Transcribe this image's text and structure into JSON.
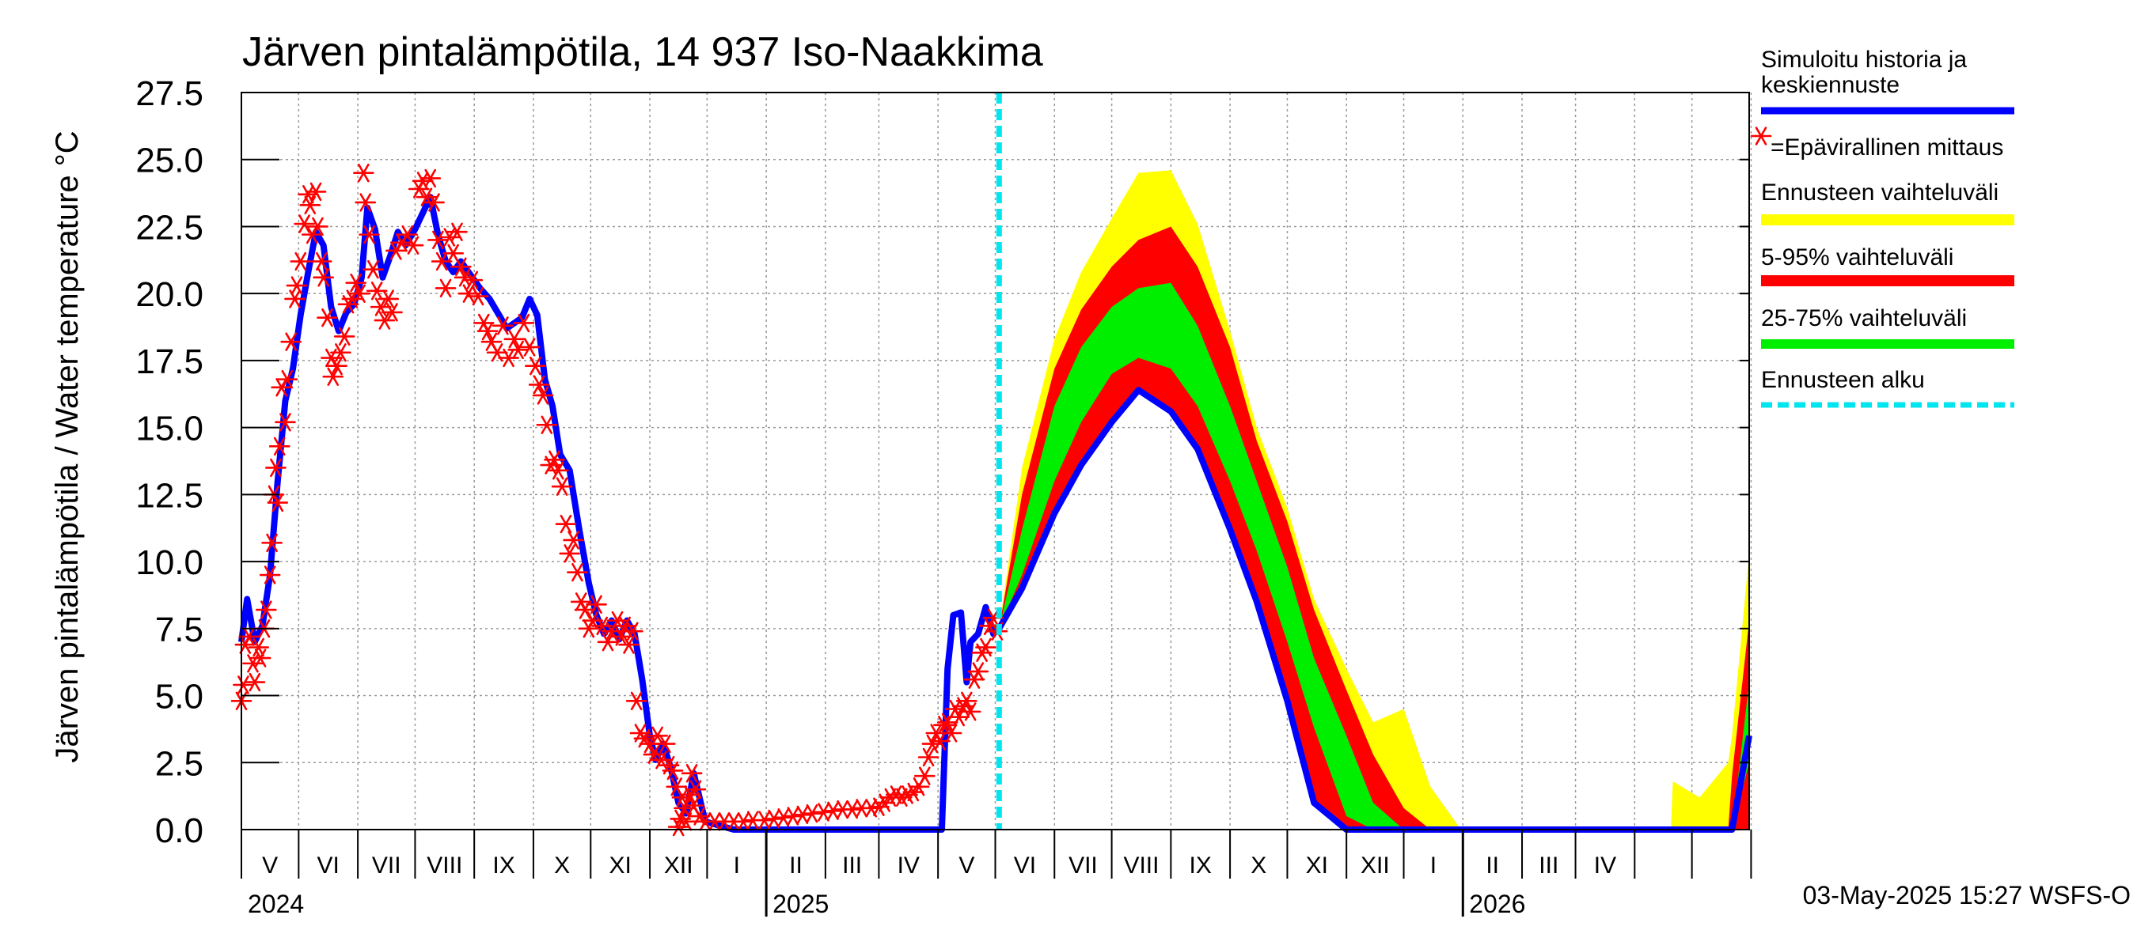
{
  "chart_data": {
    "type": "area",
    "title": "Järven pintalämpötila, 14 937 Iso-Naakkima",
    "ylabel": "Järven pintalämpötila / Water temperature °C",
    "ylim": [
      0,
      27.5
    ],
    "yticks": [
      "0.0",
      "2.5",
      "5.0",
      "7.5",
      "10.0",
      "12.5",
      "15.0",
      "17.5",
      "20.0",
      "22.5",
      "25.0",
      "27.5"
    ],
    "xlim": [
      "2024-04-01",
      "2026-05-31"
    ],
    "month_labels": [
      "V",
      "VI",
      "VII",
      "VIII",
      "IX",
      "X",
      "XI",
      "XII",
      "I",
      "II",
      "III",
      "IV",
      "V",
      "VI",
      "VII",
      "VIII",
      "IX",
      "X",
      "XI",
      "XII",
      "I",
      "II",
      "III",
      "IV"
    ],
    "year_labels": [
      "2024",
      "2025",
      "2026"
    ],
    "forecast_start": "2025-05-03",
    "timestamp": "03-May-2025 15:27 WSFS-O",
    "legend": [
      {
        "key": "history",
        "label": "Simuloitu historia ja keskiennuste",
        "color": "#0000ff"
      },
      {
        "key": "obs",
        "label": "=Epävirallinen mittaus",
        "color": "#ff0000"
      },
      {
        "key": "range",
        "label": "Ennusteen vaihteluväli",
        "color": "#ffff00"
      },
      {
        "key": "p5_95",
        "label": "5-95% vaihteluväli",
        "color": "#ff0000"
      },
      {
        "key": "p25_75",
        "label": "25-75% vaihteluväli",
        "color": "#00ee00"
      },
      {
        "key": "start",
        "label": "Ennusteen alku",
        "color": "#00e5ee"
      }
    ],
    "history": [
      [
        "2024-04-01",
        7.0
      ],
      [
        "2024-04-04",
        8.6
      ],
      [
        "2024-04-08",
        7.0
      ],
      [
        "2024-04-12",
        7.6
      ],
      [
        "2024-04-16",
        9.5
      ],
      [
        "2024-04-20",
        13.0
      ],
      [
        "2024-04-24",
        16.0
      ],
      [
        "2024-04-28",
        17.2
      ],
      [
        "2024-05-02",
        19.2
      ],
      [
        "2024-05-06",
        20.8
      ],
      [
        "2024-05-10",
        22.3
      ],
      [
        "2024-05-14",
        21.8
      ],
      [
        "2024-05-18",
        19.5
      ],
      [
        "2024-05-22",
        18.6
      ],
      [
        "2024-05-26",
        19.3
      ],
      [
        "2024-05-30",
        19.6
      ],
      [
        "2024-06-03",
        20.6
      ],
      [
        "2024-06-06",
        23.2
      ],
      [
        "2024-06-10",
        22.4
      ],
      [
        "2024-06-14",
        20.6
      ],
      [
        "2024-06-18",
        21.4
      ],
      [
        "2024-06-22",
        22.3
      ],
      [
        "2024-06-26",
        21.8
      ],
      [
        "2024-07-01",
        22.4
      ],
      [
        "2024-07-05",
        23.0
      ],
      [
        "2024-07-09",
        23.6
      ],
      [
        "2024-07-13",
        22.2
      ],
      [
        "2024-07-17",
        21.2
      ],
      [
        "2024-07-21",
        20.8
      ],
      [
        "2024-07-25",
        21.2
      ],
      [
        "2024-07-30",
        20.7
      ],
      [
        "2024-08-04",
        20.2
      ],
      [
        "2024-08-09",
        19.8
      ],
      [
        "2024-08-14",
        19.2
      ],
      [
        "2024-08-18",
        18.7
      ],
      [
        "2024-08-22",
        18.9
      ],
      [
        "2024-08-26",
        19.1
      ],
      [
        "2024-08-30",
        19.8
      ],
      [
        "2024-09-03",
        19.2
      ],
      [
        "2024-09-07",
        16.8
      ],
      [
        "2024-09-11",
        15.8
      ],
      [
        "2024-09-15",
        14.0
      ],
      [
        "2024-09-20",
        13.4
      ],
      [
        "2024-09-25",
        11.2
      ],
      [
        "2024-09-30",
        9.2
      ],
      [
        "2024-10-04",
        8.0
      ],
      [
        "2024-10-08",
        7.3
      ],
      [
        "2024-10-12",
        7.8
      ],
      [
        "2024-10-16",
        7.1
      ],
      [
        "2024-10-20",
        7.8
      ],
      [
        "2024-10-24",
        7.3
      ],
      [
        "2024-10-28",
        5.6
      ],
      [
        "2024-11-01",
        3.5
      ],
      [
        "2024-11-04",
        2.6
      ],
      [
        "2024-11-08",
        3.2
      ],
      [
        "2024-11-12",
        2.3
      ],
      [
        "2024-11-16",
        1.0
      ],
      [
        "2024-11-20",
        0.6
      ],
      [
        "2024-11-24",
        2.1
      ],
      [
        "2024-11-27",
        1.2
      ],
      [
        "2024-11-30",
        0.3
      ],
      [
        "2024-12-15",
        0.0
      ],
      [
        "2025-01-01",
        0.0
      ],
      [
        "2025-02-01",
        0.0
      ],
      [
        "2025-03-01",
        0.0
      ],
      [
        "2025-04-01",
        0.0
      ],
      [
        "2025-04-03",
        0.0
      ],
      [
        "2025-04-06",
        6.0
      ],
      [
        "2025-04-09",
        8.0
      ],
      [
        "2025-04-13",
        8.1
      ],
      [
        "2025-04-16",
        5.5
      ],
      [
        "2025-04-18",
        7.0
      ],
      [
        "2025-04-22",
        7.3
      ],
      [
        "2025-04-26",
        8.3
      ],
      [
        "2025-04-30",
        7.3
      ],
      [
        "2025-05-03",
        7.5
      ]
    ],
    "forecast": [
      [
        "2025-05-03",
        7.5,
        7.5,
        7.5,
        7.5,
        7.5,
        7.5,
        7.5
      ],
      [
        "2025-05-15",
        9.0,
        9.0,
        9.5,
        10.6,
        11.2,
        12.5,
        13.5
      ],
      [
        "2025-06-01",
        11.8,
        11.8,
        13.0,
        14.6,
        15.8,
        17.2,
        18.3
      ],
      [
        "2025-06-15",
        13.6,
        13.6,
        15.2,
        16.8,
        18.0,
        19.4,
        20.8
      ],
      [
        "2025-07-01",
        15.2,
        15.2,
        17.0,
        18.5,
        19.5,
        21.0,
        22.8
      ],
      [
        "2025-07-15",
        16.4,
        16.4,
        17.6,
        19.2,
        20.2,
        22.0,
        24.5
      ],
      [
        "2025-08-01",
        15.6,
        15.6,
        17.2,
        19.0,
        20.4,
        22.5,
        24.6
      ],
      [
        "2025-08-15",
        14.2,
        14.2,
        15.8,
        17.4,
        18.8,
        21.0,
        22.6
      ],
      [
        "2025-09-01",
        11.2,
        11.2,
        13.0,
        14.6,
        15.8,
        18.0,
        18.6
      ],
      [
        "2025-09-15",
        8.5,
        8.5,
        10.4,
        11.8,
        13.0,
        14.5,
        15.0
      ],
      [
        "2025-10-01",
        4.8,
        4.8,
        7.0,
        8.5,
        9.8,
        11.5,
        12.0
      ],
      [
        "2025-10-15",
        1.0,
        1.0,
        3.8,
        5.0,
        6.4,
        8.2,
        8.6
      ],
      [
        "2025-11-01",
        0.0,
        0.0,
        0.5,
        2.5,
        3.5,
        5.2,
        6.0
      ],
      [
        "2025-11-15",
        0.0,
        0.0,
        0.0,
        0.0,
        1.0,
        2.8,
        4.0
      ],
      [
        "2025-12-01",
        0.0,
        0.0,
        0.0,
        0.0,
        0.0,
        0.8,
        4.5
      ],
      [
        "2025-12-15",
        0.0,
        0.0,
        0.0,
        0.0,
        0.0,
        0.0,
        1.6
      ],
      [
        "2025-12-31",
        0.0,
        0.0,
        0.0,
        0.0,
        0.0,
        0.0,
        0.0
      ],
      [
        "2026-04-20",
        0.0,
        0.0,
        0.0,
        0.0,
        0.0,
        0.0,
        0.0
      ],
      [
        "2026-04-21",
        0.0,
        0.0,
        0.0,
        0.0,
        0.0,
        0.0,
        1.8
      ],
      [
        "2026-05-05",
        0.0,
        0.0,
        0.0,
        0.0,
        0.0,
        0.0,
        1.2
      ],
      [
        "2026-05-20",
        0.0,
        0.0,
        0.0,
        0.0,
        0.0,
        0.0,
        2.5
      ],
      [
        "2026-05-22",
        0.0,
        0.0,
        0.0,
        0.0,
        0.0,
        2.0,
        3.5
      ],
      [
        "2026-05-31",
        3.5,
        0.0,
        2.5,
        3.8,
        5.5,
        7.8,
        10.3
      ]
    ],
    "observations": [
      [
        "2024-04-01",
        4.8
      ],
      [
        "2024-04-02",
        5.4
      ],
      [
        "2024-04-03",
        6.9
      ],
      [
        "2024-04-05",
        7.2
      ],
      [
        "2024-04-07",
        6.2
      ],
      [
        "2024-04-08",
        5.5
      ],
      [
        "2024-04-10",
        6.8
      ],
      [
        "2024-04-11",
        6.4
      ],
      [
        "2024-04-13",
        7.5
      ],
      [
        "2024-04-14",
        8.2
      ],
      [
        "2024-04-16",
        9.5
      ],
      [
        "2024-04-17",
        10.7
      ],
      [
        "2024-04-18",
        12.5
      ],
      [
        "2024-04-19",
        13.5
      ],
      [
        "2024-04-20",
        12.2
      ],
      [
        "2024-04-21",
        14.3
      ],
      [
        "2024-04-22",
        16.5
      ],
      [
        "2024-04-24",
        15.2
      ],
      [
        "2024-04-25",
        16.8
      ],
      [
        "2024-04-27",
        18.2
      ],
      [
        "2024-04-29",
        19.8
      ],
      [
        "2024-04-30",
        20.3
      ],
      [
        "2024-05-02",
        21.2
      ],
      [
        "2024-05-04",
        22.6
      ],
      [
        "2024-05-06",
        23.7
      ],
      [
        "2024-05-07",
        23.3
      ],
      [
        "2024-05-08",
        22.2
      ],
      [
        "2024-05-10",
        23.8
      ],
      [
        "2024-05-11",
        22.5
      ],
      [
        "2024-05-13",
        21.2
      ],
      [
        "2024-05-14",
        20.6
      ],
      [
        "2024-05-16",
        19.1
      ],
      [
        "2024-05-18",
        17.6
      ],
      [
        "2024-05-19",
        16.9
      ],
      [
        "2024-05-21",
        17.3
      ],
      [
        "2024-05-23",
        17.8
      ],
      [
        "2024-05-25",
        18.4
      ],
      [
        "2024-05-27",
        19.6
      ],
      [
        "2024-05-29",
        19.8
      ],
      [
        "2024-05-31",
        20.4
      ],
      [
        "2024-06-02",
        20.0
      ],
      [
        "2024-06-04",
        24.5
      ],
      [
        "2024-06-05",
        23.4
      ],
      [
        "2024-06-07",
        22.2
      ],
      [
        "2024-06-09",
        20.9
      ],
      [
        "2024-06-11",
        20.1
      ],
      [
        "2024-06-13",
        19.5
      ],
      [
        "2024-06-15",
        19.0
      ],
      [
        "2024-06-17",
        19.8
      ],
      [
        "2024-06-19",
        19.3
      ],
      [
        "2024-06-21",
        21.6
      ],
      [
        "2024-06-24",
        21.9
      ],
      [
        "2024-06-27",
        22.2
      ],
      [
        "2024-06-30",
        21.8
      ],
      [
        "2024-07-03",
        23.9
      ],
      [
        "2024-07-05",
        24.2
      ],
      [
        "2024-07-07",
        23.6
      ],
      [
        "2024-07-09",
        24.3
      ],
      [
        "2024-07-11",
        23.4
      ],
      [
        "2024-07-13",
        22.0
      ],
      [
        "2024-07-15",
        21.2
      ],
      [
        "2024-07-17",
        20.2
      ],
      [
        "2024-07-19",
        22.1
      ],
      [
        "2024-07-21",
        21.5
      ],
      [
        "2024-07-23",
        22.3
      ],
      [
        "2024-07-25",
        21.0
      ],
      [
        "2024-07-27",
        20.6
      ],
      [
        "2024-07-29",
        20.0
      ],
      [
        "2024-07-31",
        20.5
      ],
      [
        "2024-08-03",
        19.9
      ],
      [
        "2024-08-06",
        18.9
      ],
      [
        "2024-08-08",
        18.6
      ],
      [
        "2024-08-10",
        18.2
      ],
      [
        "2024-08-13",
        17.8
      ],
      [
        "2024-08-16",
        18.8
      ],
      [
        "2024-08-19",
        17.6
      ],
      [
        "2024-08-22",
        18.3
      ],
      [
        "2024-08-24",
        17.9
      ],
      [
        "2024-08-27",
        18.9
      ],
      [
        "2024-08-30",
        18.0
      ],
      [
        "2024-09-02",
        17.3
      ],
      [
        "2024-09-04",
        16.6
      ],
      [
        "2024-09-06",
        16.2
      ],
      [
        "2024-09-08",
        15.1
      ],
      [
        "2024-09-10",
        13.6
      ],
      [
        "2024-09-12",
        13.8
      ],
      [
        "2024-09-14",
        13.4
      ],
      [
        "2024-09-16",
        12.8
      ],
      [
        "2024-09-18",
        11.4
      ],
      [
        "2024-09-20",
        10.3
      ],
      [
        "2024-09-22",
        10.8
      ],
      [
        "2024-09-24",
        9.6
      ],
      [
        "2024-09-26",
        8.5
      ],
      [
        "2024-09-28",
        8.2
      ],
      [
        "2024-09-30",
        7.5
      ],
      [
        "2024-10-02",
        7.8
      ],
      [
        "2024-10-04",
        8.4
      ],
      [
        "2024-10-07",
        7.6
      ],
      [
        "2024-10-10",
        7.0
      ],
      [
        "2024-10-12",
        7.4
      ],
      [
        "2024-10-15",
        7.8
      ],
      [
        "2024-10-17",
        7.2
      ],
      [
        "2024-10-19",
        7.6
      ],
      [
        "2024-10-21",
        6.9
      ],
      [
        "2024-10-23",
        7.4
      ],
      [
        "2024-10-25",
        4.8
      ],
      [
        "2024-10-27",
        3.6
      ],
      [
        "2024-10-29",
        3.4
      ],
      [
        "2024-11-01",
        3.2
      ],
      [
        "2024-11-03",
        2.8
      ],
      [
        "2024-11-05",
        3.5
      ],
      [
        "2024-11-07",
        2.6
      ],
      [
        "2024-11-09",
        3.2
      ],
      [
        "2024-11-11",
        2.4
      ],
      [
        "2024-11-13",
        2.2
      ],
      [
        "2024-11-15",
        1.6
      ],
      [
        "2024-11-16",
        0.1
      ],
      [
        "2024-11-17",
        0.4
      ],
      [
        "2024-11-18",
        1.2
      ],
      [
        "2024-11-19",
        0.8
      ],
      [
        "2024-11-20",
        0.3
      ],
      [
        "2024-11-22",
        1.3
      ],
      [
        "2024-11-23",
        2.1
      ],
      [
        "2024-11-24",
        0.9
      ],
      [
        "2024-11-25",
        1.5
      ],
      [
        "2024-11-27",
        0.5
      ],
      [
        "2024-11-30",
        0.3
      ],
      [
        "2024-12-05",
        0.3
      ],
      [
        "2024-12-10",
        0.3
      ],
      [
        "2024-12-15",
        0.3
      ],
      [
        "2024-12-20",
        0.3
      ],
      [
        "2024-12-25",
        0.35
      ],
      [
        "2024-12-31",
        0.35
      ],
      [
        "2025-01-05",
        0.4
      ],
      [
        "2025-01-10",
        0.45
      ],
      [
        "2025-01-15",
        0.5
      ],
      [
        "2025-01-20",
        0.55
      ],
      [
        "2025-01-25",
        0.6
      ],
      [
        "2025-01-31",
        0.65
      ],
      [
        "2025-02-05",
        0.7
      ],
      [
        "2025-02-10",
        0.75
      ],
      [
        "2025-02-15",
        0.75
      ],
      [
        "2025-02-20",
        0.8
      ],
      [
        "2025-02-25",
        0.8
      ],
      [
        "2025-03-01",
        0.85
      ],
      [
        "2025-03-04",
        1.0
      ],
      [
        "2025-03-07",
        1.2
      ],
      [
        "2025-03-10",
        1.3
      ],
      [
        "2025-03-13",
        1.2
      ],
      [
        "2025-03-16",
        1.3
      ],
      [
        "2025-03-19",
        1.4
      ],
      [
        "2025-03-22",
        1.6
      ],
      [
        "2025-03-25",
        2.0
      ],
      [
        "2025-03-27",
        2.7
      ],
      [
        "2025-03-29",
        3.2
      ],
      [
        "2025-03-31",
        3.6
      ],
      [
        "2025-04-02",
        3.3
      ],
      [
        "2025-04-04",
        3.9
      ],
      [
        "2025-04-06",
        4.0
      ],
      [
        "2025-04-08",
        3.6
      ],
      [
        "2025-04-10",
        4.5
      ],
      [
        "2025-04-12",
        4.2
      ],
      [
        "2025-04-14",
        4.6
      ],
      [
        "2025-04-16",
        4.8
      ],
      [
        "2025-04-18",
        4.4
      ],
      [
        "2025-04-20",
        5.6
      ],
      [
        "2025-04-22",
        5.9
      ],
      [
        "2025-04-24",
        6.6
      ],
      [
        "2025-04-26",
        6.8
      ],
      [
        "2025-04-28",
        7.6
      ],
      [
        "2025-04-30",
        7.9
      ],
      [
        "2025-05-02",
        7.4
      ]
    ]
  }
}
